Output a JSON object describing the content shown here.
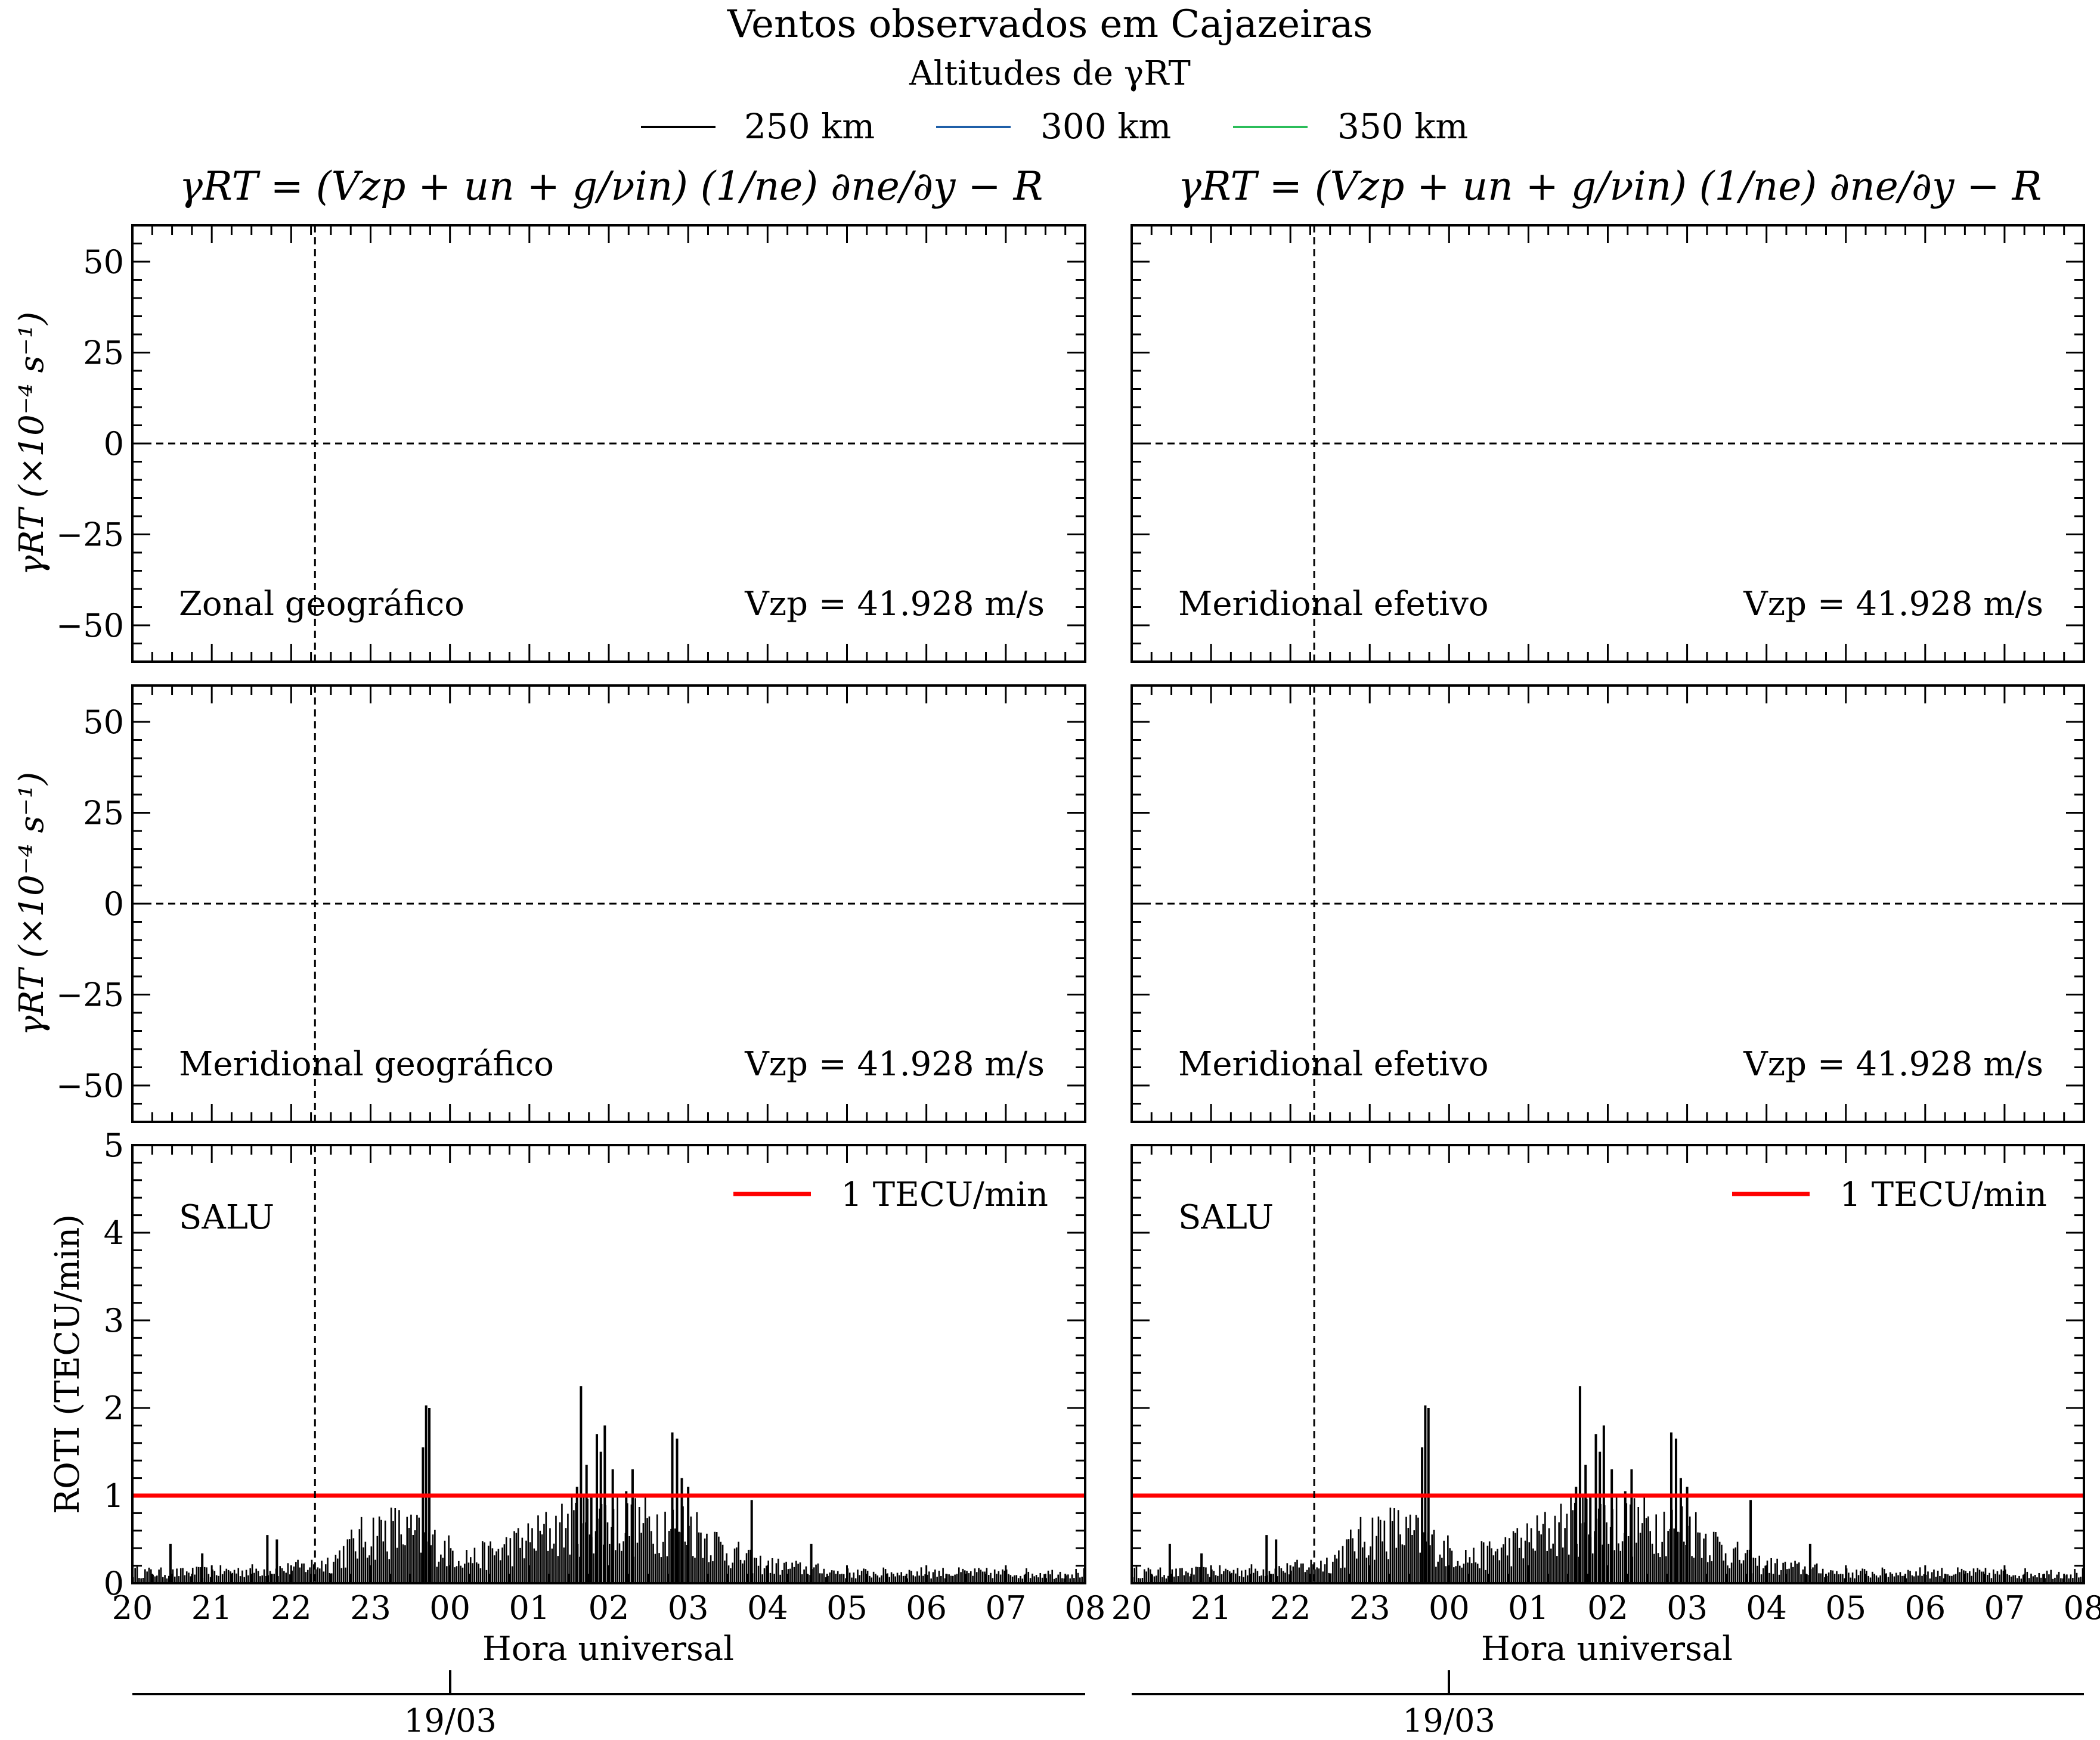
{
  "figure": {
    "title": "Ventos observados em Cajazeiras",
    "subtitle": "Altitudes de γRT",
    "legend": [
      {
        "label": "250 km",
        "color": "#000000"
      },
      {
        "label": "300 km",
        "color": "#1f5fa8"
      },
      {
        "label": "350 km",
        "color": "#2bbd5a"
      }
    ],
    "column_titles": [
      "γRT = (Vzp + un + g/νin) (1/ne) ∂ne/∂y − R",
      "γRT = (Vzp + un + g/νin) (1/ne) ∂ne/∂y − R"
    ],
    "date_label": "19/03",
    "xlabel": "Hora universal",
    "colors": {
      "threshold": "#ff0000",
      "bars": "#000000"
    }
  },
  "chart_data": [
    {
      "type": "line",
      "panel": "top-left",
      "label": "Zonal geográfico",
      "note": "Vzp = 41.928 m/s",
      "ylabel": "γRT (×10⁻⁴ s⁻¹)",
      "ylim": [
        -60,
        60
      ],
      "yticks": [
        -50,
        -25,
        0,
        25,
        50
      ],
      "ytick_labels": [
        "−50",
        "−25",
        "0",
        "25",
        "50"
      ],
      "xlim": [
        20,
        32
      ],
      "reference_lines": {
        "y": 0,
        "x": 22.3
      },
      "series": []
    },
    {
      "type": "line",
      "panel": "top-right",
      "label": "Meridional efetivo",
      "note": "Vzp = 41.928 m/s",
      "ylim": [
        -60,
        60
      ],
      "yticks": [
        -50,
        -25,
        0,
        25,
        50
      ],
      "xlim": [
        20,
        32
      ],
      "reference_lines": {
        "y": 0,
        "x": 22.3
      },
      "series": []
    },
    {
      "type": "line",
      "panel": "middle-left",
      "label": "Meridional geográfico",
      "note": "Vzp = 41.928 m/s",
      "ylabel": "γRT (×10⁻⁴ s⁻¹)",
      "ylim": [
        -60,
        60
      ],
      "yticks": [
        -50,
        -25,
        0,
        25,
        50
      ],
      "ytick_labels": [
        "−50",
        "−25",
        "0",
        "25",
        "50"
      ],
      "xlim": [
        20,
        32
      ],
      "reference_lines": {
        "y": 0,
        "x": 22.3
      },
      "series": []
    },
    {
      "type": "line",
      "panel": "middle-right",
      "label": "Meridional efetivo",
      "note": "Vzp = 41.928 m/s",
      "ylim": [
        -60,
        60
      ],
      "yticks": [
        -50,
        -25,
        0,
        25,
        50
      ],
      "xlim": [
        20,
        32
      ],
      "reference_lines": {
        "y": 0,
        "x": 22.3
      },
      "series": []
    },
    {
      "type": "bar",
      "panel": "bottom-left",
      "station": "SALU",
      "ylabel": "ROTI (TECU/min)",
      "xlabel": "Hora universal",
      "ylim": [
        0,
        5
      ],
      "yticks": [
        0,
        1,
        2,
        3,
        4,
        5
      ],
      "ytick_labels": [
        "0",
        "1",
        "2",
        "3",
        "4",
        "5"
      ],
      "xlim": [
        20,
        32
      ],
      "xtick_labels": [
        "20",
        "21",
        "22",
        "23",
        "00",
        "01",
        "02",
        "03",
        "04",
        "05",
        "06",
        "07",
        "08"
      ],
      "threshold": {
        "label": "1 TECU/min",
        "value": 1
      },
      "reference_lines": {
        "x": 22.3
      },
      "envelope": [
        [
          20.0,
          0.16
        ],
        [
          20.5,
          0.14
        ],
        [
          21.0,
          0.16
        ],
        [
          21.5,
          0.18
        ],
        [
          22.0,
          0.2
        ],
        [
          22.5,
          0.3
        ],
        [
          22.8,
          0.55
        ],
        [
          23.0,
          0.7
        ],
        [
          23.3,
          0.75
        ],
        [
          23.6,
          0.65
        ],
        [
          23.7,
          0.6
        ],
        [
          24.0,
          0.45
        ],
        [
          24.3,
          0.35
        ],
        [
          24.6,
          0.45
        ],
        [
          25.0,
          0.6
        ],
        [
          25.3,
          0.75
        ],
        [
          25.6,
          0.85
        ],
        [
          26.0,
          0.9
        ],
        [
          26.3,
          0.8
        ],
        [
          26.6,
          0.85
        ],
        [
          27.0,
          0.8
        ],
        [
          27.3,
          0.6
        ],
        [
          27.5,
          0.45
        ],
        [
          27.8,
          0.3
        ],
        [
          28.0,
          0.25
        ],
        [
          28.5,
          0.2
        ],
        [
          29.0,
          0.14
        ],
        [
          30.0,
          0.15
        ],
        [
          31.0,
          0.14
        ],
        [
          32.0,
          0.14
        ]
      ],
      "peaks": [
        [
          20.48,
          0.45
        ],
        [
          20.88,
          0.34
        ],
        [
          21.7,
          0.55
        ],
        [
          21.82,
          0.5
        ],
        [
          23.7,
          2.03
        ],
        [
          23.74,
          2.0
        ],
        [
          23.66,
          1.55
        ],
        [
          25.6,
          1.1
        ],
        [
          25.65,
          2.25
        ],
        [
          25.72,
          1.35
        ],
        [
          25.78,
          1.0
        ],
        [
          25.85,
          1.7
        ],
        [
          25.9,
          1.5
        ],
        [
          25.95,
          1.8
        ],
        [
          26.05,
          1.3
        ],
        [
          26.22,
          1.05
        ],
        [
          26.3,
          1.3
        ],
        [
          26.8,
          1.72
        ],
        [
          26.86,
          1.65
        ],
        [
          26.92,
          1.2
        ],
        [
          27.0,
          1.1
        ],
        [
          27.8,
          0.95
        ],
        [
          28.55,
          0.45
        ]
      ]
    },
    {
      "type": "bar",
      "panel": "bottom-right",
      "station": "SALU",
      "xlabel": "Hora universal",
      "ylim": [
        0,
        5
      ],
      "yticks": [
        0,
        1,
        2,
        3,
        4,
        5
      ],
      "xlim": [
        20,
        32
      ],
      "xtick_labels": [
        "20",
        "21",
        "22",
        "23",
        "00",
        "01",
        "02",
        "03",
        "04",
        "05",
        "06",
        "07",
        "08"
      ],
      "threshold": {
        "label": "1 TECU/min",
        "value": 1
      },
      "reference_lines": {
        "x": 22.3
      },
      "same_data_as": "bottom-left"
    }
  ]
}
